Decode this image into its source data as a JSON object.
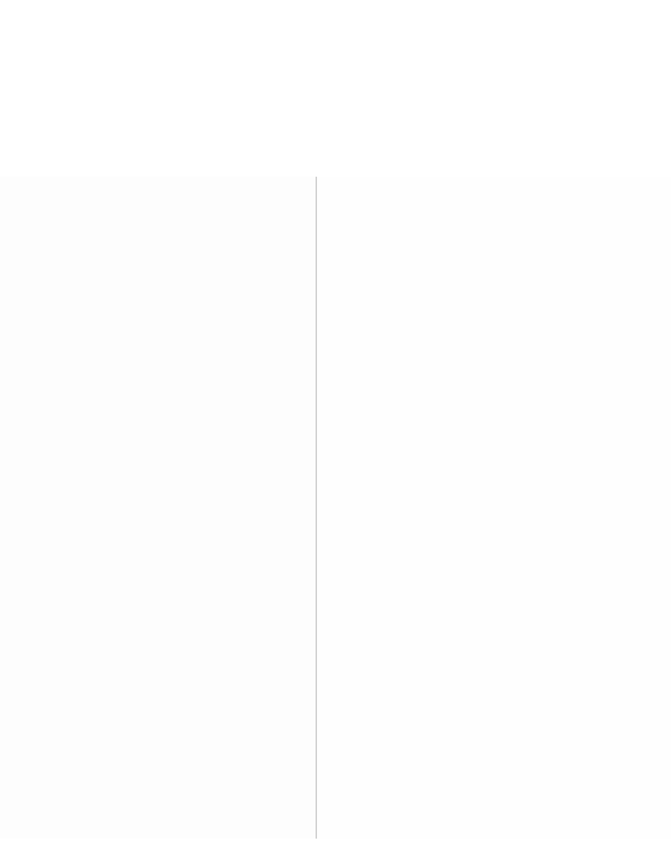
{
  "theme": {
    "background": "#ffffff",
    "left_pane_background": "#fdfdfd",
    "right_pane_background": "#fefefe",
    "divider_color": "#cfcfcf"
  }
}
